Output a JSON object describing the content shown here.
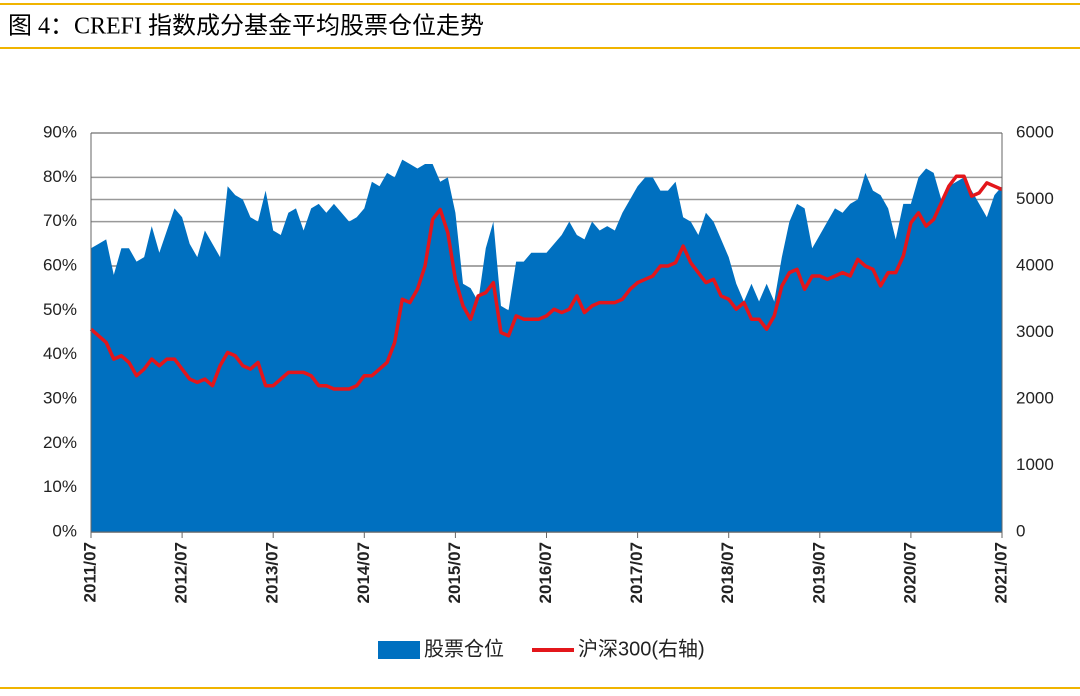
{
  "chart_data": {
    "type": "area",
    "title": "图 4：CREFI 指数成分基金平均股票仓位走势",
    "categories": [
      "2011/07",
      null,
      null,
      null,
      null,
      null,
      null,
      null,
      null,
      null,
      null,
      null,
      "2012/07",
      null,
      null,
      null,
      null,
      null,
      null,
      null,
      null,
      null,
      null,
      null,
      "2013/07",
      null,
      null,
      null,
      null,
      null,
      null,
      null,
      null,
      null,
      null,
      null,
      "2014/07",
      null,
      null,
      null,
      null,
      null,
      null,
      null,
      null,
      null,
      null,
      null,
      "2015/07",
      null,
      null,
      null,
      null,
      null,
      null,
      null,
      null,
      null,
      null,
      null,
      "2016/07",
      null,
      null,
      null,
      null,
      null,
      null,
      null,
      null,
      null,
      null,
      null,
      "2017/07",
      null,
      null,
      null,
      null,
      null,
      null,
      null,
      null,
      null,
      null,
      null,
      "2018/07",
      null,
      null,
      null,
      null,
      null,
      null,
      null,
      null,
      null,
      null,
      null,
      "2019/07",
      null,
      null,
      null,
      null,
      null,
      null,
      null,
      null,
      null,
      null,
      null,
      "2020/07",
      null,
      null,
      null,
      null,
      null,
      null,
      null,
      null,
      null,
      null,
      null,
      "2021/07"
    ],
    "series": [
      {
        "name": "股票仓位",
        "type": "area",
        "color": "#0070c0",
        "values": [
          64,
          65,
          66,
          58,
          64,
          64,
          61,
          62,
          69,
          63,
          68,
          73,
          71,
          65,
          62,
          68,
          65,
          62,
          78,
          76,
          75,
          71,
          70,
          77,
          68,
          67,
          72,
          73,
          68,
          73,
          74,
          72,
          74,
          72,
          70,
          71,
          73,
          79,
          78,
          81,
          80,
          84,
          83,
          82,
          83,
          83,
          79,
          80,
          72,
          56,
          55,
          52,
          64,
          70,
          51,
          50,
          61,
          61,
          63,
          63,
          63,
          65,
          67,
          70,
          67,
          66,
          70,
          68,
          69,
          68,
          72,
          75,
          78,
          80,
          80,
          77,
          77,
          79,
          71,
          70,
          67,
          72,
          70,
          66,
          62,
          56,
          52,
          56,
          52,
          56,
          52,
          62,
          70,
          74,
          73,
          64,
          67,
          70,
          73,
          72,
          74,
          75,
          81,
          77,
          76,
          73,
          66,
          74,
          74,
          80,
          82,
          81,
          75,
          78,
          79,
          80,
          77,
          74,
          71,
          76,
          78
        ]
      },
      {
        "name": "沪深300(右轴)",
        "type": "line",
        "axis": "y2",
        "color": "#e3161b",
        "values": [
          3050,
          2950,
          2850,
          2600,
          2650,
          2550,
          2350,
          2450,
          2600,
          2500,
          2600,
          2600,
          2450,
          2300,
          2250,
          2300,
          2200,
          2500,
          2700,
          2650,
          2500,
          2450,
          2550,
          2200,
          2200,
          2300,
          2400,
          2400,
          2400,
          2350,
          2200,
          2200,
          2150,
          2150,
          2150,
          2200,
          2350,
          2350,
          2450,
          2550,
          2850,
          3500,
          3450,
          3650,
          4000,
          4700,
          4850,
          4500,
          3800,
          3400,
          3200,
          3550,
          3600,
          3750,
          3000,
          2950,
          3250,
          3200,
          3200,
          3200,
          3250,
          3350,
          3300,
          3350,
          3550,
          3300,
          3400,
          3450,
          3450,
          3450,
          3500,
          3650,
          3750,
          3800,
          3850,
          4000,
          4000,
          4050,
          4300,
          4050,
          3900,
          3750,
          3800,
          3550,
          3500,
          3350,
          3450,
          3200,
          3200,
          3050,
          3250,
          3700,
          3900,
          3950,
          3650,
          3850,
          3850,
          3800,
          3850,
          3900,
          3850,
          4100,
          4000,
          3950,
          3700,
          3900,
          3900,
          4150,
          4650,
          4800,
          4600,
          4700,
          4950,
          5200,
          5350,
          5350,
          5050,
          5100,
          5250,
          5200,
          5150
        ]
      }
    ],
    "ylim": [
      0,
      90
    ],
    "yticks": [
      {
        "value": 0,
        "label": "0%"
      },
      {
        "value": 10,
        "label": "10%"
      },
      {
        "value": 20,
        "label": "20%"
      },
      {
        "value": 30,
        "label": "30%"
      },
      {
        "value": 40,
        "label": "40%"
      },
      {
        "value": 50,
        "label": "50%"
      },
      {
        "value": 60,
        "label": "60%"
      },
      {
        "value": 70,
        "label": "70%"
      },
      {
        "value": 80,
        "label": "80%"
      },
      {
        "value": 90,
        "label": "90%"
      }
    ],
    "y2lim": [
      0,
      6000
    ],
    "y2ticks": [
      0,
      1000,
      2000,
      3000,
      4000,
      5000,
      6000
    ],
    "grid": true,
    "legend": "bottom"
  }
}
